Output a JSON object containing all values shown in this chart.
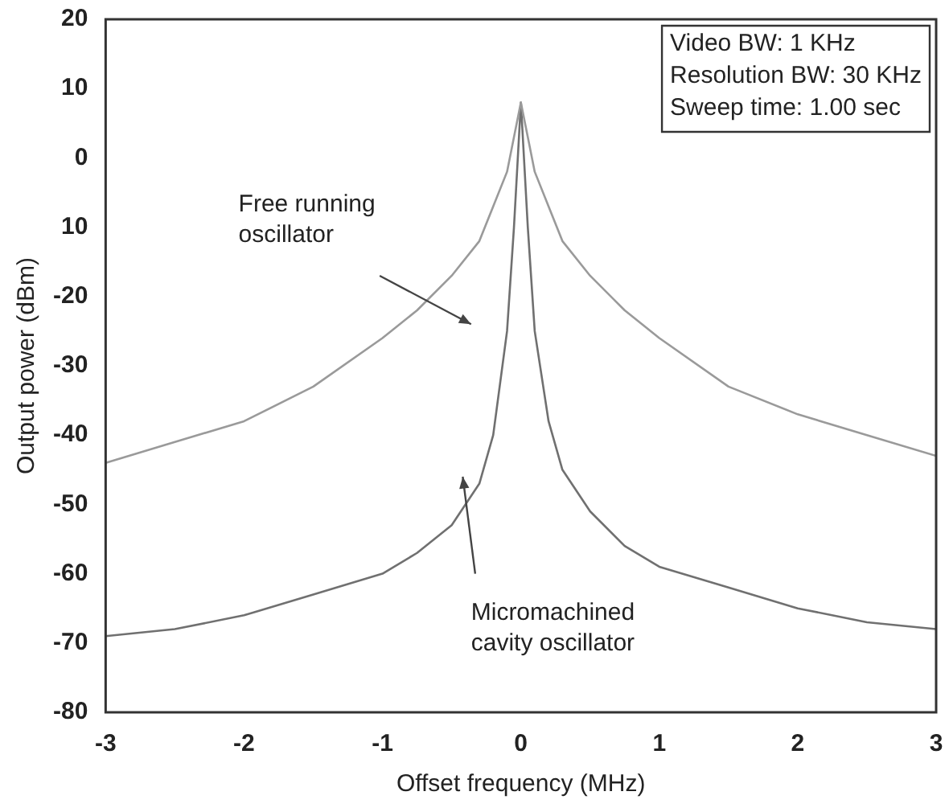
{
  "chart_data": {
    "type": "line",
    "xlabel": "Offset frequency (MHz)",
    "ylabel": "Output power (dBm)",
    "xlim": [
      -3,
      3
    ],
    "xticks": [
      -3,
      -2,
      -1,
      0,
      1,
      2,
      3
    ],
    "ylim": [
      -80,
      20
    ],
    "yticks": [
      -80,
      -70,
      -60,
      -50,
      -40,
      -30,
      -20,
      {
        "value": -10,
        "label": "10"
      },
      0,
      10,
      20
    ],
    "grid": false,
    "legend": false,
    "marker": "none",
    "line_style": "solid",
    "series": [
      {
        "color": "#9a9a9a",
        "x": [
          -3,
          -2.5,
          -2,
          -1.5,
          -1,
          -0.75,
          -0.5,
          -0.3,
          -0.2,
          -0.1,
          -0.05,
          0,
          0.05,
          0.1,
          0.2,
          0.3,
          0.5,
          0.75,
          1,
          1.5,
          2,
          2.5,
          3
        ],
        "values": [
          -44,
          -41,
          -38,
          -33,
          -26,
          -22,
          -17,
          -12,
          -7,
          -2,
          3,
          8,
          3,
          -2,
          -7,
          -12,
          -17,
          -22,
          -26,
          -33,
          -37,
          -40,
          -43
        ]
      },
      {
        "color": "#707070",
        "x": [
          -3,
          -2.5,
          -2,
          -1.5,
          -1,
          -0.75,
          -0.5,
          -0.3,
          -0.2,
          -0.1,
          -0.05,
          0,
          0.05,
          0.1,
          0.2,
          0.3,
          0.5,
          0.75,
          1,
          1.5,
          2,
          2.5,
          3
        ],
        "values": [
          -69,
          -68,
          -66,
          -63,
          -60,
          -57,
          -53,
          -47,
          -40,
          -25,
          -10,
          8,
          -10,
          -25,
          -38,
          -45,
          -51,
          -56,
          -59,
          -62,
          -65,
          -67,
          -68
        ]
      }
    ],
    "annotations": [
      "Video BW: 1 KHz",
      "Resolution BW: 30 KHz",
      "Sweep time: 1.00 sec",
      "Free running\noscillator",
      "Micromachined\ncavity oscillator"
    ]
  }
}
